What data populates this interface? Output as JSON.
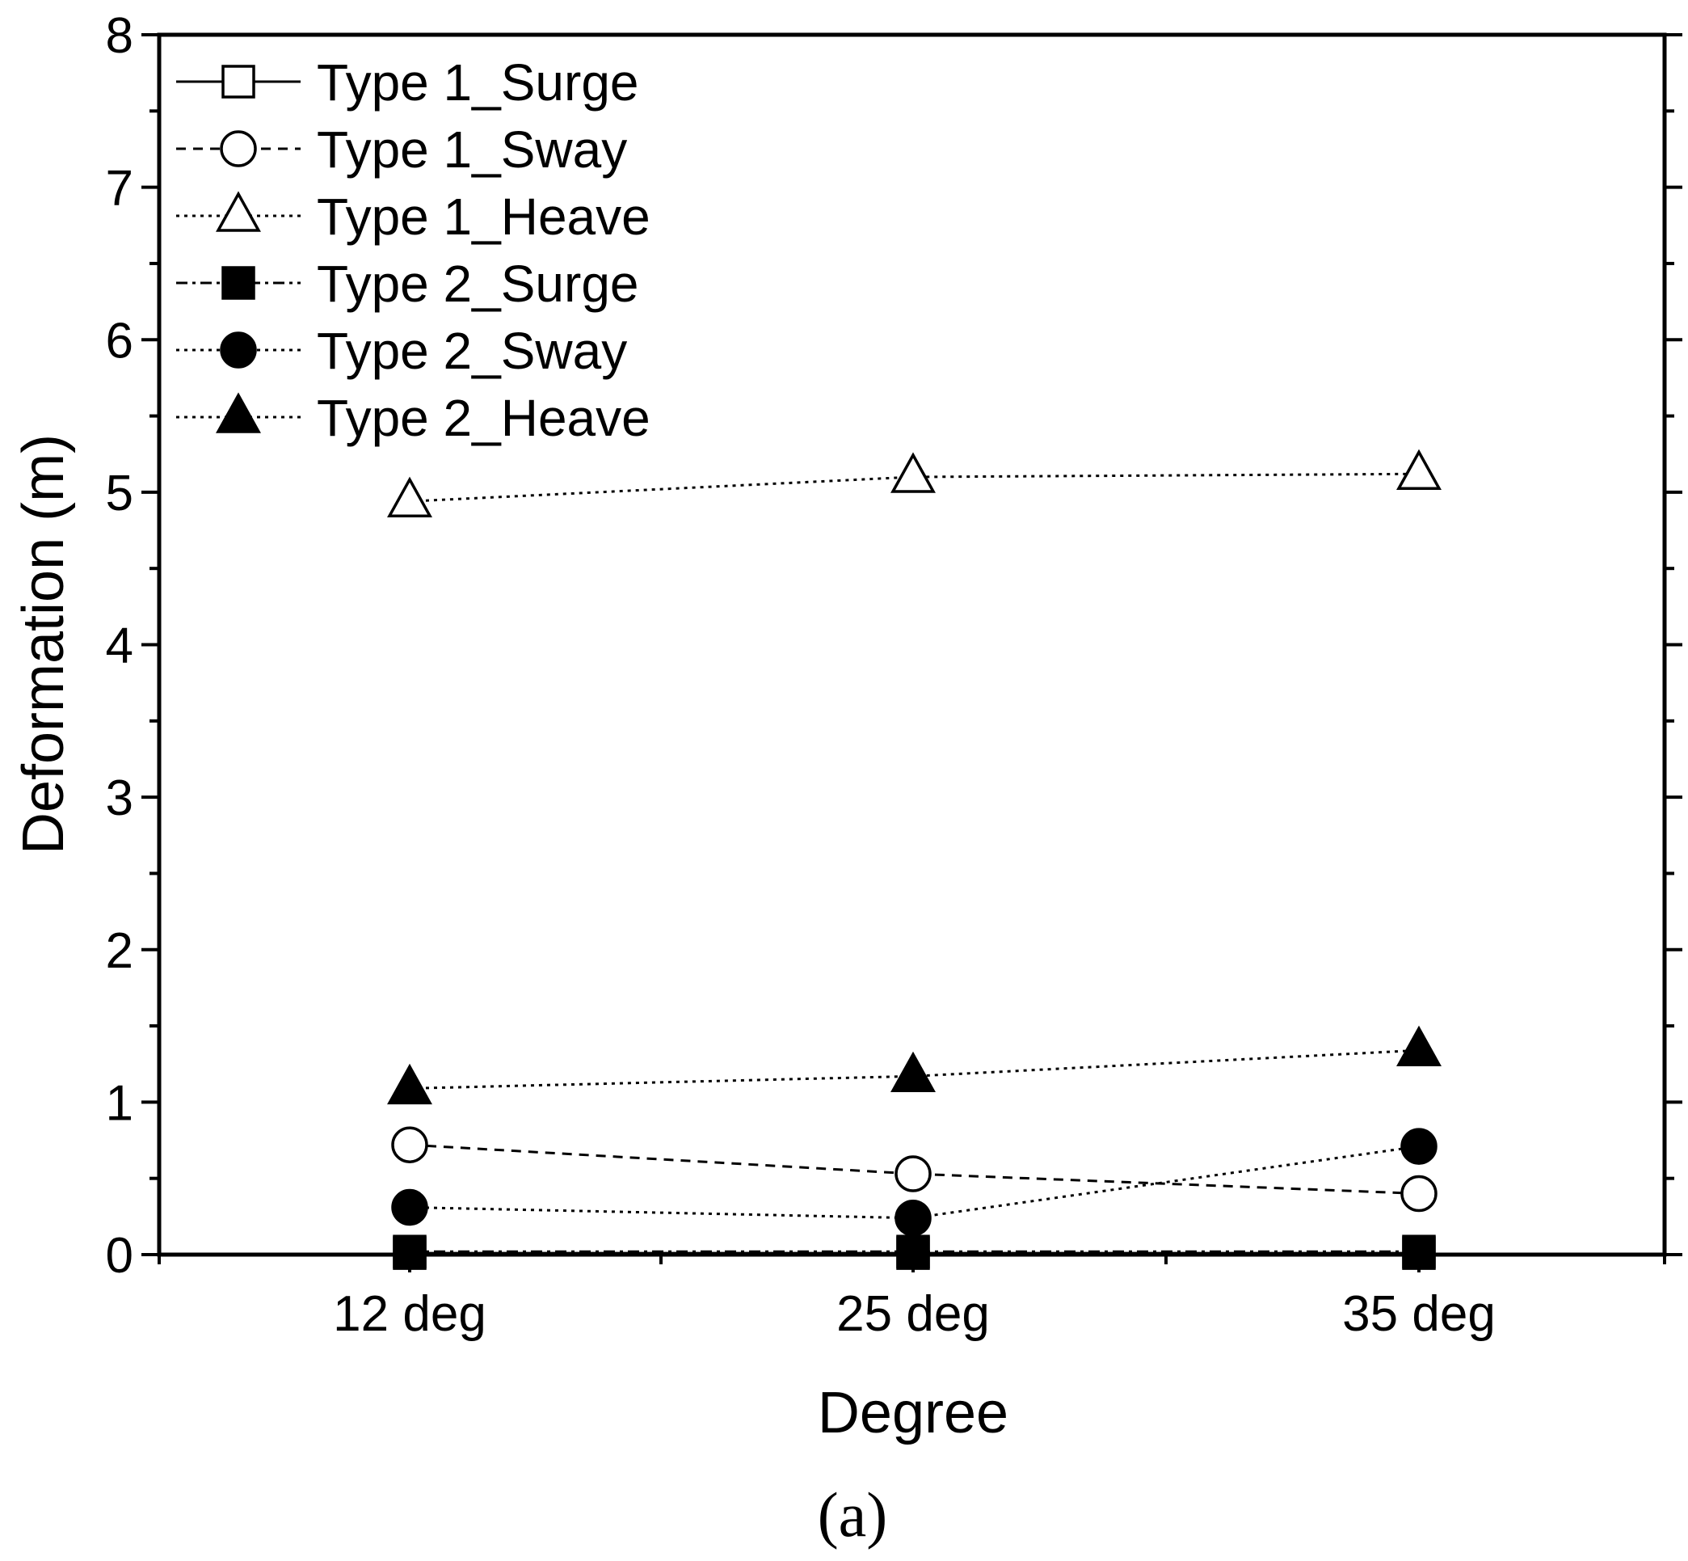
{
  "chart_data": {
    "type": "line",
    "title": "",
    "xlabel": "Degree",
    "ylabel": "Deformation (m)",
    "panel_label": "(a)",
    "categories": [
      "12 deg",
      "25 deg",
      "35 deg"
    ],
    "ylim": [
      0,
      8
    ],
    "yticks": [
      "0",
      "1",
      "2",
      "3",
      "4",
      "5",
      "6",
      "7",
      "8"
    ],
    "grid": false,
    "legend_position": "top-left",
    "series": [
      {
        "name": "Type 1_Surge",
        "values": [
          0.01,
          0.01,
          0.01
        ],
        "marker": "square",
        "filled": false,
        "line": "solid"
      },
      {
        "name": "Type 1_Sway",
        "values": [
          0.72,
          0.53,
          0.4
        ],
        "marker": "circle",
        "filled": false,
        "line": "dashed"
      },
      {
        "name": "Type 1_Heave",
        "values": [
          4.94,
          5.1,
          5.12
        ],
        "marker": "triangle",
        "filled": false,
        "line": "dotted"
      },
      {
        "name": "Type 2_Surge",
        "values": [
          0.02,
          0.02,
          0.02
        ],
        "marker": "square",
        "filled": true,
        "line": "dashdot"
      },
      {
        "name": "Type 2_Sway",
        "values": [
          0.31,
          0.24,
          0.71
        ],
        "marker": "circle",
        "filled": true,
        "line": "dotted"
      },
      {
        "name": "Type 2_Heave",
        "values": [
          1.09,
          1.17,
          1.34
        ],
        "marker": "triangle",
        "filled": true,
        "line": "dotted"
      }
    ]
  }
}
